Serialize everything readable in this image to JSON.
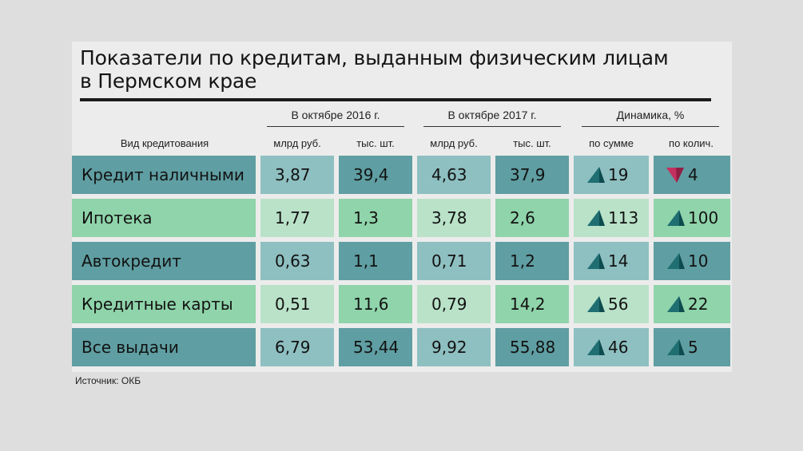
{
  "title_line1": "Показатели по кредитам, выданным физическим лицам",
  "title_line2": "в Пермском крае",
  "source": "Источник: ОКБ",
  "colors": {
    "dark_row": "#5f9ea2",
    "dark_row_light": "#8ebfc1",
    "light_row": "#8fd4aa",
    "light_row_light": "#b9e2c8",
    "up_triangle": "#1f6f72",
    "down_triangle": "#c4305f"
  },
  "headers": {
    "row_label": "Вид кредитования",
    "group_2016": "В октябре 2016 г.",
    "group_2017": "В октябре 2017 г.",
    "group_dynamics": "Динамика, %",
    "col_mlrd": "млрд руб.",
    "col_tys": "тыс. шт.",
    "col_sum": "по сумме",
    "col_qty": "по колич."
  },
  "chart_data": {
    "type": "table",
    "title": "Показатели по кредитам, выданным физическим лицам в Пермском крае",
    "columns": [
      "Вид кредитования",
      "В октябре 2016 г. млрд руб.",
      "В октябре 2016 г. тыс. шт.",
      "В октябре 2017 г. млрд руб.",
      "В октябре 2017 г. тыс. шт.",
      "Динамика, % по сумме",
      "Динамика, % по колич."
    ],
    "rows": [
      {
        "name": "Кредит наличными",
        "v2016_mlrd": "3,87",
        "v2016_tys": "39,4",
        "v2017_mlrd": "4,63",
        "v2017_tys": "37,9",
        "dyn_sum": "19",
        "dyn_sum_dir": "up",
        "dyn_qty": "4",
        "dyn_qty_dir": "down"
      },
      {
        "name": "Ипотека",
        "v2016_mlrd": "1,77",
        "v2016_tys": "1,3",
        "v2017_mlrd": "3,78",
        "v2017_tys": "2,6",
        "dyn_sum": "113",
        "dyn_sum_dir": "up",
        "dyn_qty": "100",
        "dyn_qty_dir": "up"
      },
      {
        "name": "Автокредит",
        "v2016_mlrd": "0,63",
        "v2016_tys": "1,1",
        "v2017_mlrd": "0,71",
        "v2017_tys": "1,2",
        "dyn_sum": "14",
        "dyn_sum_dir": "up",
        "dyn_qty": "10",
        "dyn_qty_dir": "up"
      },
      {
        "name": "Кредитные карты",
        "v2016_mlrd": "0,51",
        "v2016_tys": "11,6",
        "v2017_mlrd": "0,79",
        "v2017_tys": "14,2",
        "dyn_sum": "56",
        "dyn_sum_dir": "up",
        "dyn_qty": "22",
        "dyn_qty_dir": "up"
      },
      {
        "name": "Все выдачи",
        "v2016_mlrd": "6,79",
        "v2016_tys": "53,44",
        "v2017_mlrd": "9,92",
        "v2017_tys": "55,88",
        "dyn_sum": "46",
        "dyn_sum_dir": "up",
        "dyn_qty": "5",
        "dyn_qty_dir": "up"
      }
    ]
  }
}
